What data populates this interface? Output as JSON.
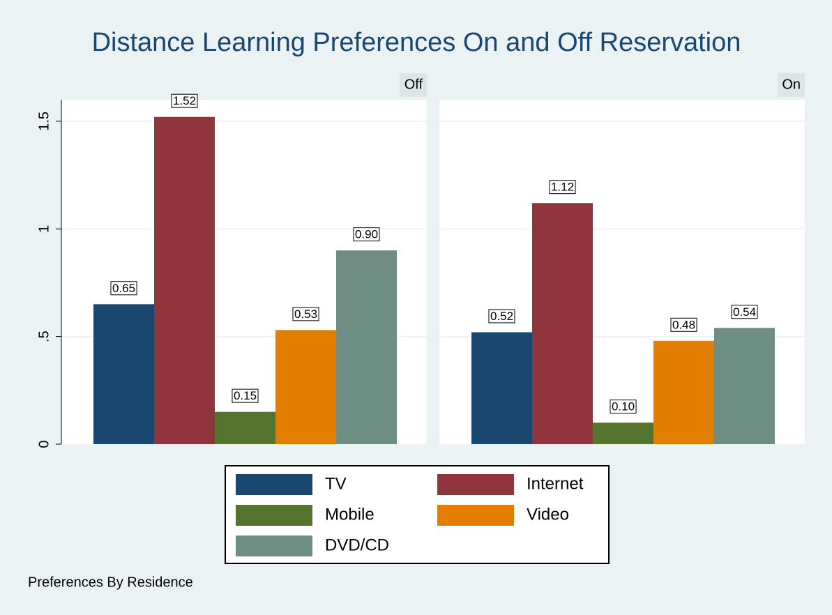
{
  "chart_data": {
    "type": "bar",
    "title": "Distance Learning Preferences On and Off Reservation",
    "note": "Preferences By Residence",
    "categories": [
      "Off",
      "On"
    ],
    "series": [
      {
        "name": "TV",
        "color": "#1a476f",
        "values": [
          0.65,
          0.52
        ],
        "value_labels": [
          "0.65",
          "0.52"
        ]
      },
      {
        "name": "Internet",
        "color": "#90353b",
        "values": [
          1.52,
          1.12
        ],
        "value_labels": [
          "1.52",
          "1.12"
        ]
      },
      {
        "name": "Mobile",
        "color": "#55752f",
        "values": [
          0.15,
          0.1
        ],
        "value_labels": [
          "0.15",
          "0.10"
        ]
      },
      {
        "name": "Video",
        "color": "#e37e00",
        "values": [
          0.53,
          0.48
        ],
        "value_labels": [
          "0.53",
          "0.48"
        ]
      },
      {
        "name": "DVD/CD",
        "color": "#6e8e84",
        "values": [
          0.9,
          0.54
        ],
        "value_labels": [
          "0.90",
          "0.54"
        ]
      }
    ],
    "ylim": [
      0,
      1.6
    ],
    "yticks": [
      0,
      {
        "value": 0.5,
        "label": ".5"
      },
      1,
      1.5
    ],
    "grid": true
  }
}
